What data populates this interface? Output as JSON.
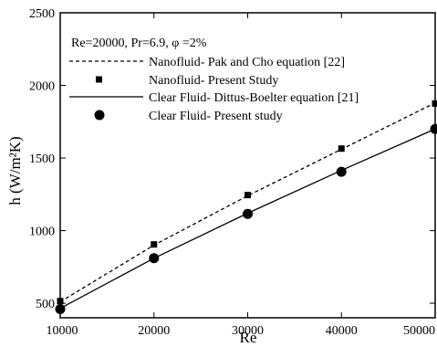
{
  "chart_data": {
    "type": "line",
    "annotation": "Re=20000, Pr=6.9, φ =2%",
    "xlabel": "Re",
    "ylabel": "h (W/m²K)",
    "xlim": [
      10000,
      50000
    ],
    "ylim": [
      400,
      2500
    ],
    "xticks": [
      10000,
      20000,
      30000,
      40000,
      50000
    ],
    "yticks": [
      500,
      1000,
      1500,
      2000,
      2500
    ],
    "grid": false,
    "legend_position": "top-left",
    "series": [
      {
        "name": "Nanofluid- Pak and Cho equation [22]",
        "style": "dashed-line",
        "x": [
          10000,
          20000,
          30000,
          40000,
          50000
        ],
        "y": [
          510,
          900,
          1240,
          1560,
          1880
        ]
      },
      {
        "name": "Nanofluid- Present Study",
        "style": "square-marker",
        "x": [
          10000,
          20000,
          30000,
          40000,
          50000
        ],
        "y": [
          515,
          905,
          1245,
          1565,
          1875
        ]
      },
      {
        "name": "Clear Fluid- Dittus-Boelter equation [21]",
        "style": "solid-line",
        "x": [
          10000,
          20000,
          30000,
          40000,
          50000
        ],
        "y": [
          465,
          810,
          1120,
          1415,
          1700
        ]
      },
      {
        "name": "Clear Fluid- Present study",
        "style": "circle-marker",
        "x": [
          10000,
          20000,
          30000,
          40000,
          50000
        ],
        "y": [
          460,
          810,
          1115,
          1405,
          1700
        ]
      }
    ]
  }
}
